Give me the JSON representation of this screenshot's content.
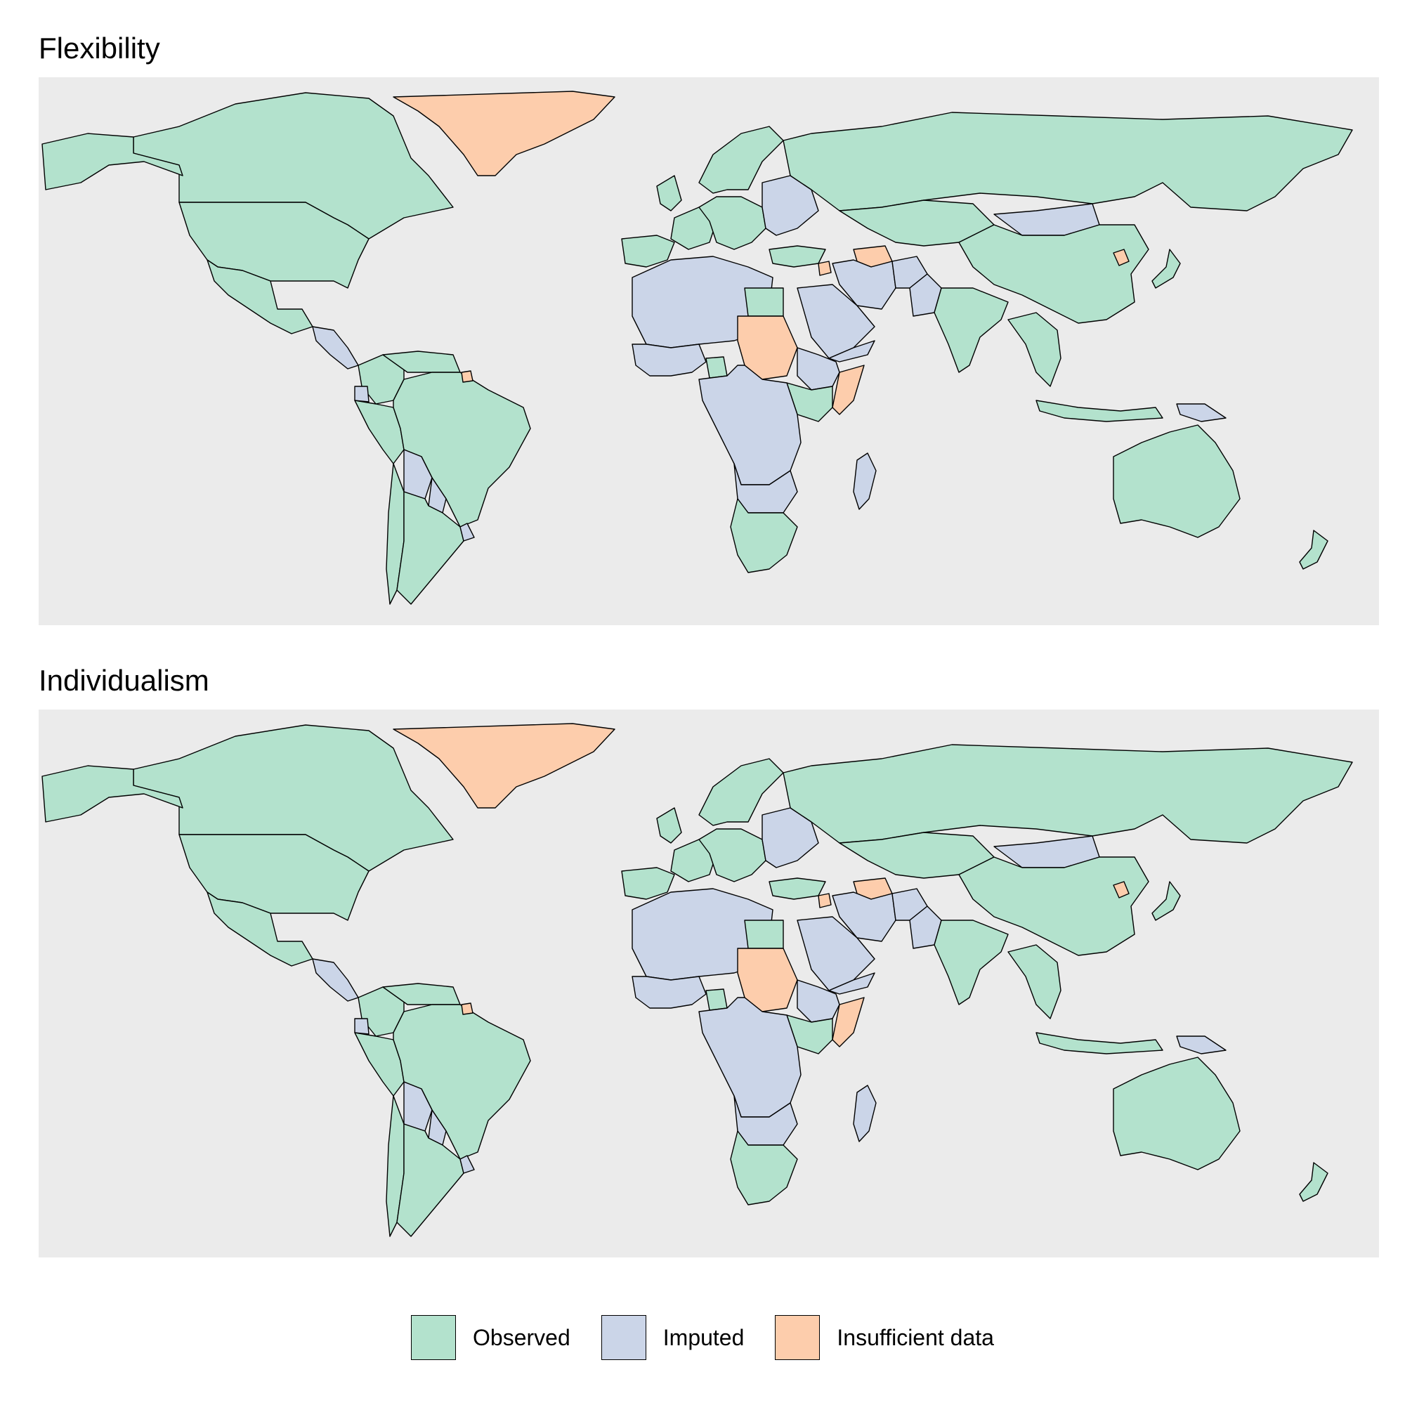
{
  "panels": [
    {
      "title": "Flexibility",
      "regions": [
        {
          "name": "Greenland",
          "status": "insufficient"
        },
        {
          "name": "Canada",
          "status": "observed"
        },
        {
          "name": "Alaska",
          "status": "observed"
        },
        {
          "name": "United States",
          "status": "observed"
        },
        {
          "name": "Mexico",
          "status": "observed"
        },
        {
          "name": "Central America",
          "status": "imputed"
        },
        {
          "name": "Colombia",
          "status": "observed"
        },
        {
          "name": "Venezuela",
          "status": "observed"
        },
        {
          "name": "Ecuador",
          "status": "imputed"
        },
        {
          "name": "Peru",
          "status": "observed"
        },
        {
          "name": "Brazil",
          "status": "observed"
        },
        {
          "name": "Bolivia",
          "status": "imputed"
        },
        {
          "name": "Paraguay",
          "status": "imputed"
        },
        {
          "name": "Chile",
          "status": "observed"
        },
        {
          "name": "Argentina",
          "status": "observed"
        },
        {
          "name": "Uruguay",
          "status": "imputed"
        },
        {
          "name": "French Guiana",
          "status": "insufficient"
        },
        {
          "name": "Iberia",
          "status": "observed"
        },
        {
          "name": "France",
          "status": "observed"
        },
        {
          "name": "United Kingdom",
          "status": "observed"
        },
        {
          "name": "Scandinavia",
          "status": "observed"
        },
        {
          "name": "Central Europe",
          "status": "observed"
        },
        {
          "name": "Eastern Europe",
          "status": "imputed"
        },
        {
          "name": "Russia",
          "status": "observed"
        },
        {
          "name": "Kazakhstan",
          "status": "observed"
        },
        {
          "name": "Mongolia",
          "status": "imputed"
        },
        {
          "name": "China",
          "status": "observed"
        },
        {
          "name": "North Korea",
          "status": "insufficient"
        },
        {
          "name": "Japan",
          "status": "observed"
        },
        {
          "name": "Turkey",
          "status": "observed"
        },
        {
          "name": "Syria",
          "status": "insufficient"
        },
        {
          "name": "Turkmenistan",
          "status": "insufficient"
        },
        {
          "name": "Iran",
          "status": "imputed"
        },
        {
          "name": "Afghanistan",
          "status": "imputed"
        },
        {
          "name": "Pakistan",
          "status": "imputed"
        },
        {
          "name": "India",
          "status": "observed"
        },
        {
          "name": "Saudi Arabia",
          "status": "imputed"
        },
        {
          "name": "Yemen",
          "status": "imputed"
        },
        {
          "name": "Southeast Asia",
          "status": "observed"
        },
        {
          "name": "Indonesia",
          "status": "observed"
        },
        {
          "name": "Papua New Guinea",
          "status": "imputed"
        },
        {
          "name": "Australia",
          "status": "observed"
        },
        {
          "name": "New Zealand",
          "status": "observed"
        },
        {
          "name": "North Africa",
          "status": "imputed"
        },
        {
          "name": "Egypt",
          "status": "observed"
        },
        {
          "name": "Sudan",
          "status": "insufficient"
        },
        {
          "name": "Somalia",
          "status": "insufficient"
        },
        {
          "name": "Ethiopia",
          "status": "imputed"
        },
        {
          "name": "Kenya",
          "status": "observed"
        },
        {
          "name": "West Africa",
          "status": "imputed"
        },
        {
          "name": "Ghana",
          "status": "observed"
        },
        {
          "name": "Central Africa",
          "status": "imputed"
        },
        {
          "name": "Southern Africa",
          "status": "imputed"
        },
        {
          "name": "South Africa",
          "status": "observed"
        },
        {
          "name": "Madagascar",
          "status": "imputed"
        }
      ]
    },
    {
      "title": "Individualism",
      "regions": [
        {
          "name": "Greenland",
          "status": "insufficient"
        },
        {
          "name": "Canada",
          "status": "observed"
        },
        {
          "name": "Alaska",
          "status": "observed"
        },
        {
          "name": "United States",
          "status": "observed"
        },
        {
          "name": "Mexico",
          "status": "observed"
        },
        {
          "name": "Central America",
          "status": "imputed"
        },
        {
          "name": "Colombia",
          "status": "observed"
        },
        {
          "name": "Venezuela",
          "status": "observed"
        },
        {
          "name": "Ecuador",
          "status": "imputed"
        },
        {
          "name": "Peru",
          "status": "observed"
        },
        {
          "name": "Brazil",
          "status": "observed"
        },
        {
          "name": "Bolivia",
          "status": "imputed"
        },
        {
          "name": "Paraguay",
          "status": "imputed"
        },
        {
          "name": "Chile",
          "status": "observed"
        },
        {
          "name": "Argentina",
          "status": "observed"
        },
        {
          "name": "Uruguay",
          "status": "imputed"
        },
        {
          "name": "French Guiana",
          "status": "insufficient"
        },
        {
          "name": "Iberia",
          "status": "observed"
        },
        {
          "name": "France",
          "status": "observed"
        },
        {
          "name": "United Kingdom",
          "status": "observed"
        },
        {
          "name": "Scandinavia",
          "status": "observed"
        },
        {
          "name": "Central Europe",
          "status": "observed"
        },
        {
          "name": "Eastern Europe",
          "status": "imputed"
        },
        {
          "name": "Russia",
          "status": "observed"
        },
        {
          "name": "Kazakhstan",
          "status": "observed"
        },
        {
          "name": "Mongolia",
          "status": "imputed"
        },
        {
          "name": "China",
          "status": "observed"
        },
        {
          "name": "North Korea",
          "status": "insufficient"
        },
        {
          "name": "Japan",
          "status": "observed"
        },
        {
          "name": "Turkey",
          "status": "observed"
        },
        {
          "name": "Syria",
          "status": "insufficient"
        },
        {
          "name": "Turkmenistan",
          "status": "insufficient"
        },
        {
          "name": "Iran",
          "status": "imputed"
        },
        {
          "name": "Afghanistan",
          "status": "imputed"
        },
        {
          "name": "Pakistan",
          "status": "imputed"
        },
        {
          "name": "India",
          "status": "observed"
        },
        {
          "name": "Saudi Arabia",
          "status": "imputed"
        },
        {
          "name": "Yemen",
          "status": "imputed"
        },
        {
          "name": "Southeast Asia",
          "status": "observed"
        },
        {
          "name": "Indonesia",
          "status": "observed"
        },
        {
          "name": "Papua New Guinea",
          "status": "imputed"
        },
        {
          "name": "Australia",
          "status": "observed"
        },
        {
          "name": "New Zealand",
          "status": "observed"
        },
        {
          "name": "North Africa",
          "status": "imputed"
        },
        {
          "name": "Egypt",
          "status": "observed"
        },
        {
          "name": "Sudan",
          "status": "insufficient"
        },
        {
          "name": "Somalia",
          "status": "insufficient"
        },
        {
          "name": "Ethiopia",
          "status": "imputed"
        },
        {
          "name": "Kenya",
          "status": "observed"
        },
        {
          "name": "West Africa",
          "status": "imputed"
        },
        {
          "name": "Ghana",
          "status": "observed"
        },
        {
          "name": "Central Africa",
          "status": "imputed"
        },
        {
          "name": "Southern Africa",
          "status": "imputed"
        },
        {
          "name": "South Africa",
          "status": "observed"
        },
        {
          "name": "Madagascar",
          "status": "imputed"
        }
      ]
    }
  ],
  "legend": [
    {
      "key": "observed",
      "label": "Observed",
      "color": "#b3e2cd"
    },
    {
      "key": "imputed",
      "label": "Imputed",
      "color": "#cbd5e8"
    },
    {
      "key": "insufficient",
      "label": "Insufficient data",
      "color": "#fdcdac"
    }
  ],
  "colors": {
    "panel_background": "#ebebeb",
    "border": "#000000"
  }
}
